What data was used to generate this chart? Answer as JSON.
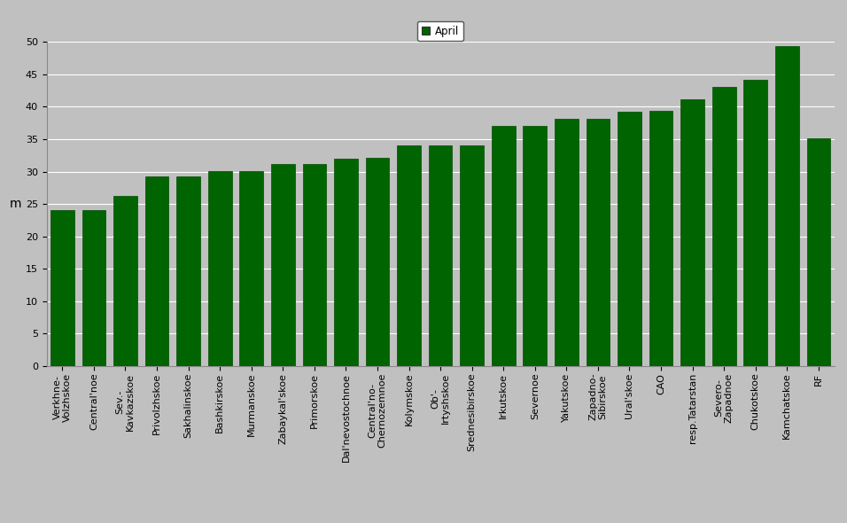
{
  "categories": [
    "Verkhne-\nVolzhskoe",
    "Central'noe",
    "Sev.-\nKavkazskoe",
    "Privolzhskoe",
    "Sakhalinskoe",
    "Bashkirskoe",
    "Murmanskoe",
    "Zabaykal'skoe",
    "Primorskoe",
    "Dal'nevostochnoe",
    "Central'no-\nChernozemnoe",
    "Kolymskoe",
    "Ob'-\nIrtyshskoe",
    "Srednesibirskoe",
    "Irkutskoe",
    "Severnoe",
    "Yakutskoe",
    "Zapadno-\nSibirskoe",
    "Ural'skoe",
    "CAO",
    "resp.Tatarstan",
    "Severo-\nZapadnoe",
    "Chukotskoe",
    "Kamchatskoe",
    "RF"
  ],
  "values": [
    24.0,
    24.0,
    26.2,
    29.3,
    29.3,
    30.1,
    30.1,
    31.1,
    31.1,
    32.0,
    32.1,
    34.0,
    34.1,
    34.1,
    37.0,
    37.0,
    38.2,
    38.2,
    39.2,
    39.3,
    41.2,
    43.1,
    44.1,
    49.3,
    35.1
  ],
  "bar_color": "#006400",
  "background_color": "#C0C0C0",
  "figure_background": "#C0C0C0",
  "ylabel": "m",
  "ylim": [
    0,
    50
  ],
  "yticks": [
    0,
    5,
    10,
    15,
    20,
    25,
    30,
    35,
    40,
    45,
    50
  ],
  "legend_label": "April",
  "legend_color": "#006400",
  "grid_color": "#ffffff",
  "tick_fontsize": 8,
  "ylabel_fontsize": 10
}
